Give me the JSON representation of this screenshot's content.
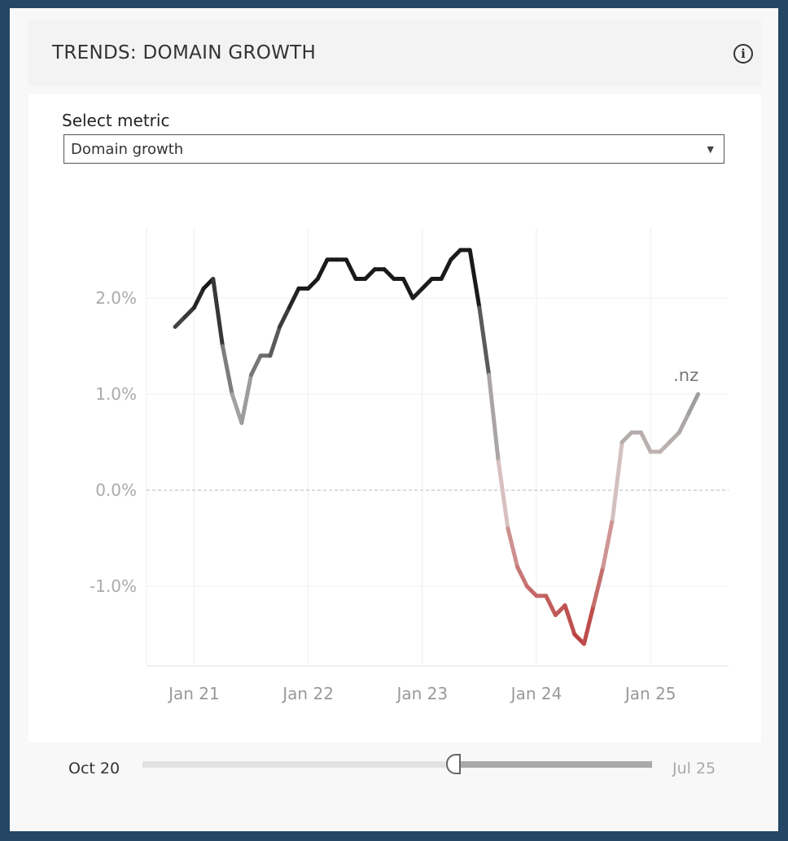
{
  "header": {
    "title": "TRENDS: DOMAIN GROWTH",
    "info_icon": "info-icon"
  },
  "filter": {
    "label": "Select metric",
    "value": "Domain growth"
  },
  "slider": {
    "start_label": "Oct 20",
    "end_label": "Jul 25",
    "position_fraction": 0.61
  },
  "chart_data": {
    "type": "line",
    "title": "TRENDS: DOMAIN GROWTH",
    "xlabel": "",
    "ylabel": "",
    "x_unit": "months since Nov 2020",
    "x_ticks": [
      {
        "label": "Jan 21",
        "x": 2
      },
      {
        "label": "Jan 22",
        "x": 14
      },
      {
        "label": "Jan 23",
        "x": 26
      },
      {
        "label": "Jan 24",
        "x": 38
      },
      {
        "label": "Jan 25",
        "x": 50
      }
    ],
    "y_ticks": [
      {
        "label": "2.0%",
        "y": 2
      },
      {
        "label": "1.0%",
        "y": 1
      },
      {
        "label": "0.0%",
        "y": 0
      },
      {
        "label": "-1.0%",
        "y": -1
      }
    ],
    "xlim": [
      -3,
      58.2
    ],
    "ylim": [
      -1.83,
      2.73
    ],
    "grid": true,
    "zero_line": "dashed",
    "series": [
      {
        "name": ".nz",
        "label": ".nz",
        "values": [
          1.7,
          1.8,
          1.9,
          2.1,
          2.2,
          1.5,
          1.0,
          0.7,
          1.2,
          1.4,
          1.4,
          1.7,
          1.9,
          2.1,
          2.1,
          2.2,
          2.4,
          2.4,
          2.4,
          2.2,
          2.2,
          2.3,
          2.3,
          2.2,
          2.2,
          2.0,
          2.1,
          2.2,
          2.2,
          2.4,
          2.5,
          2.5,
          1.9,
          1.2,
          0.3,
          -0.4,
          -0.8,
          -1.0,
          -1.1,
          -1.1,
          -1.3,
          -1.2,
          -1.5,
          -1.6,
          -1.2,
          -0.8,
          -0.3,
          0.5,
          0.6,
          0.6,
          0.4,
          0.4,
          0.5,
          0.6,
          0.8,
          1.0
        ]
      }
    ],
    "colors": {
      "high": "#1a1a1a",
      "mid": "#9a9a9a",
      "zero": "#d9c4c4",
      "low": "#bb4442"
    }
  }
}
